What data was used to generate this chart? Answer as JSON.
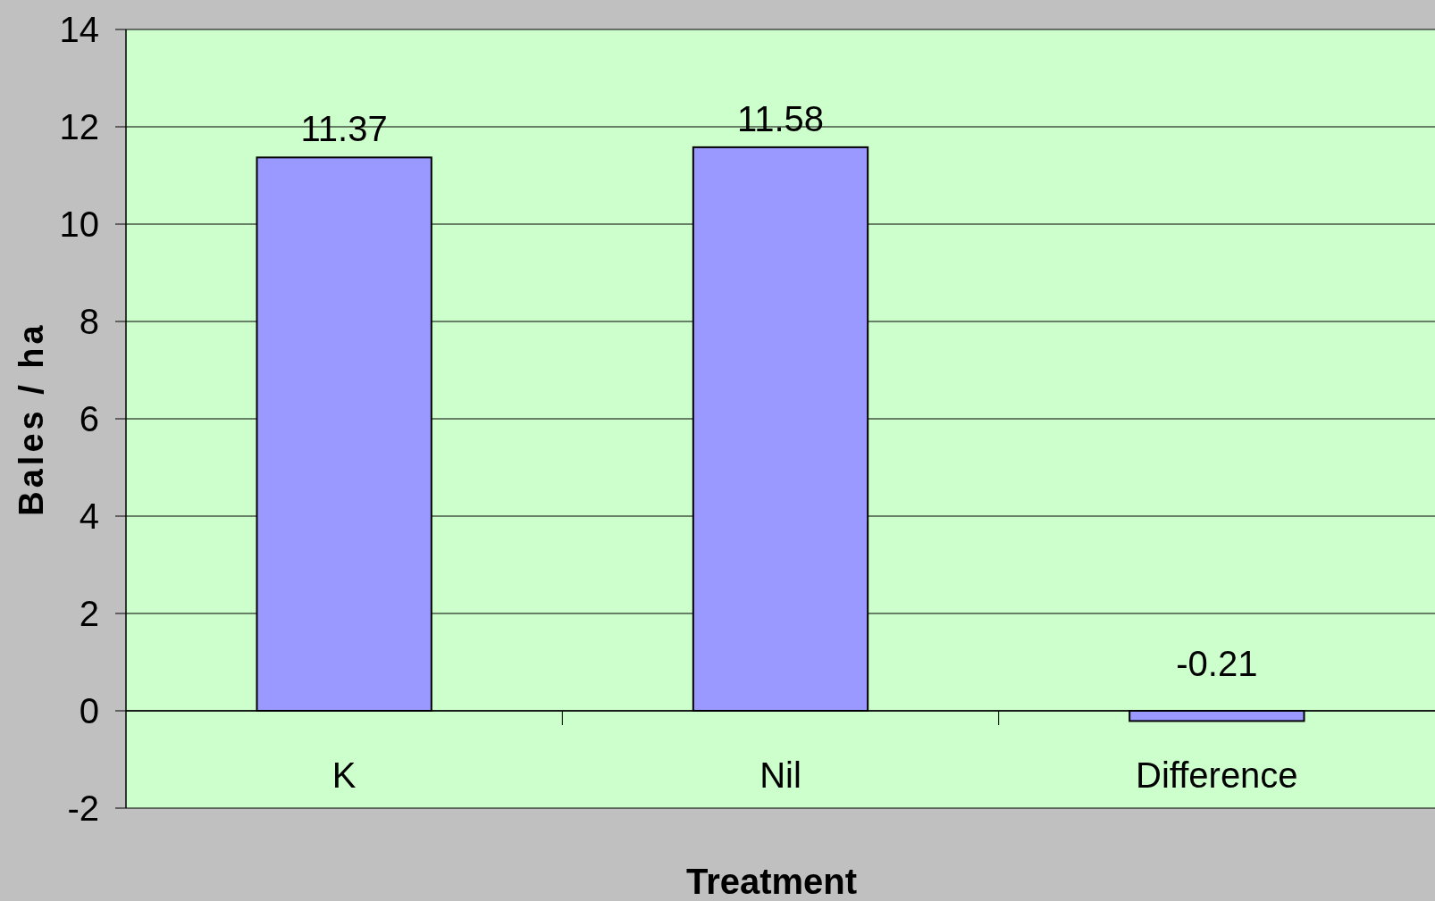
{
  "chart_data": {
    "type": "bar",
    "xlabel": "Treatment",
    "ylabel": "Bales / ha",
    "categories": [
      "K",
      "Nil",
      "Difference"
    ],
    "series": [
      {
        "color": "#9999ff",
        "values": [
          11.37,
          11.58,
          -0.21
        ]
      }
    ],
    "ylim": [
      -2,
      14
    ],
    "yticks": [
      -2,
      0,
      2,
      4,
      6,
      8,
      10,
      12,
      14
    ],
    "grid": "y",
    "data_labels": true
  }
}
